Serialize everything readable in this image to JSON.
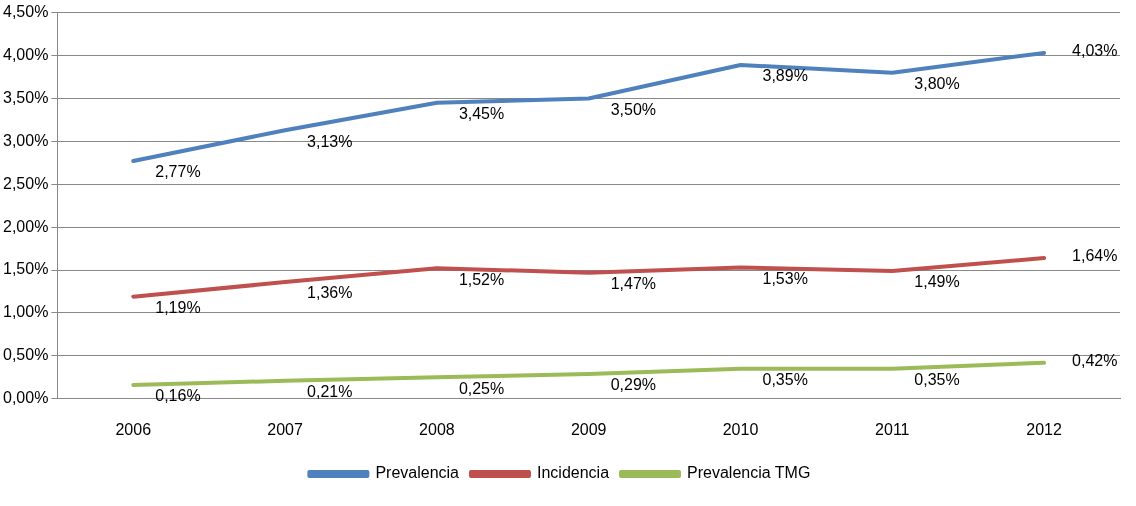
{
  "chart_data": {
    "type": "line",
    "categories": [
      "2006",
      "2007",
      "2008",
      "2009",
      "2010",
      "2011",
      "2012"
    ],
    "series": [
      {
        "name": "Prevalencia",
        "color": "#4f81bd",
        "values": [
          2.77,
          3.13,
          3.45,
          3.5,
          3.89,
          3.8,
          4.03
        ],
        "value_labels": [
          "2,77%",
          "3,13%",
          "3,45%",
          "3,50%",
          "3,89%",
          "3,80%",
          "4,03%"
        ]
      },
      {
        "name": "Incidencia",
        "color": "#c0504d",
        "values": [
          1.19,
          1.36,
          1.52,
          1.47,
          1.53,
          1.49,
          1.64
        ],
        "value_labels": [
          "1,19%",
          "1,36%",
          "1,52%",
          "1,47%",
          "1,53%",
          "1,49%",
          "1,64%"
        ]
      },
      {
        "name": "Prevalencia TMG",
        "color": "#9bbb59",
        "values": [
          0.16,
          0.21,
          0.25,
          0.29,
          0.35,
          0.35,
          0.42
        ],
        "value_labels": [
          "0,16%",
          "0,21%",
          "0,25%",
          "0,29%",
          "0,35%",
          "0,35%",
          "0,42%"
        ]
      }
    ],
    "ylim": [
      0,
      4.5
    ],
    "yticks": [
      {
        "value": 0,
        "label": "0,00%"
      },
      {
        "value": 0.5,
        "label": "0,50%"
      },
      {
        "value": 1,
        "label": "1,00%"
      },
      {
        "value": 1.5,
        "label": "1,50%"
      },
      {
        "value": 2,
        "label": "2,00%"
      },
      {
        "value": 2.5,
        "label": "2,50%"
      },
      {
        "value": 3,
        "label": "3,00%"
      },
      {
        "value": 3.5,
        "label": "3,50%"
      },
      {
        "value": 4,
        "label": "4,00%"
      },
      {
        "value": 4.5,
        "label": "4,50%"
      }
    ],
    "grid": "y",
    "legend": "bottom",
    "marker": "none",
    "line_style": "solid"
  }
}
